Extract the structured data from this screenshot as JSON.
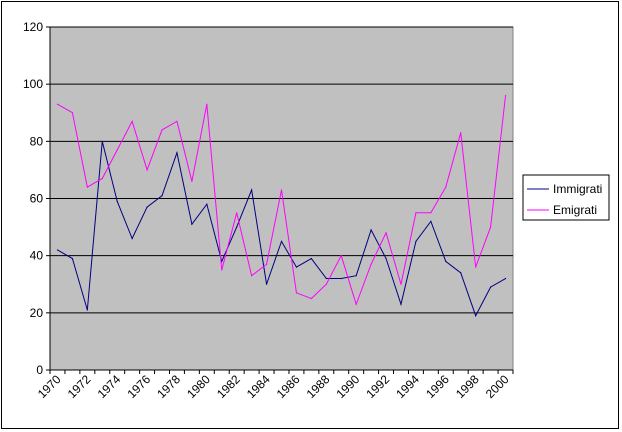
{
  "chart_data": {
    "type": "line",
    "x": [
      1970,
      1971,
      1972,
      1973,
      1974,
      1975,
      1976,
      1977,
      1978,
      1979,
      1980,
      1981,
      1982,
      1983,
      1984,
      1985,
      1986,
      1987,
      1988,
      1989,
      1990,
      1991,
      1992,
      1993,
      1994,
      1995,
      1996,
      1997,
      1998,
      1999,
      2000
    ],
    "x_tick_labels": [
      "1970",
      "1972",
      "1974",
      "1976",
      "1978",
      "1980",
      "1982",
      "1984",
      "1986",
      "1988",
      "1990",
      "1992",
      "1994",
      "1996",
      "1998",
      "2000"
    ],
    "y_tick_labels": [
      "0",
      "20",
      "40",
      "60",
      "80",
      "100",
      "120"
    ],
    "ylim": [
      0,
      120
    ],
    "grid": true,
    "legend_position": "right",
    "plot_background": "#c0c0c0",
    "series": [
      {
        "name": "Immigrati",
        "color": "#000080",
        "values": [
          42,
          39,
          21,
          80,
          59,
          46,
          57,
          61,
          76,
          51,
          58,
          38,
          50,
          63,
          30,
          45,
          36,
          39,
          32,
          32,
          33,
          49,
          39,
          23,
          45,
          52,
          38,
          34,
          19,
          29,
          32
        ]
      },
      {
        "name": "Emigrati",
        "color": "#ff00ff",
        "values": [
          93,
          90,
          64,
          67,
          77,
          87,
          70,
          84,
          87,
          66,
          93,
          35,
          55,
          33,
          37,
          63,
          27,
          25,
          30,
          40,
          23,
          37,
          48,
          30,
          55,
          55,
          64,
          83,
          36,
          50,
          96
        ]
      }
    ]
  }
}
